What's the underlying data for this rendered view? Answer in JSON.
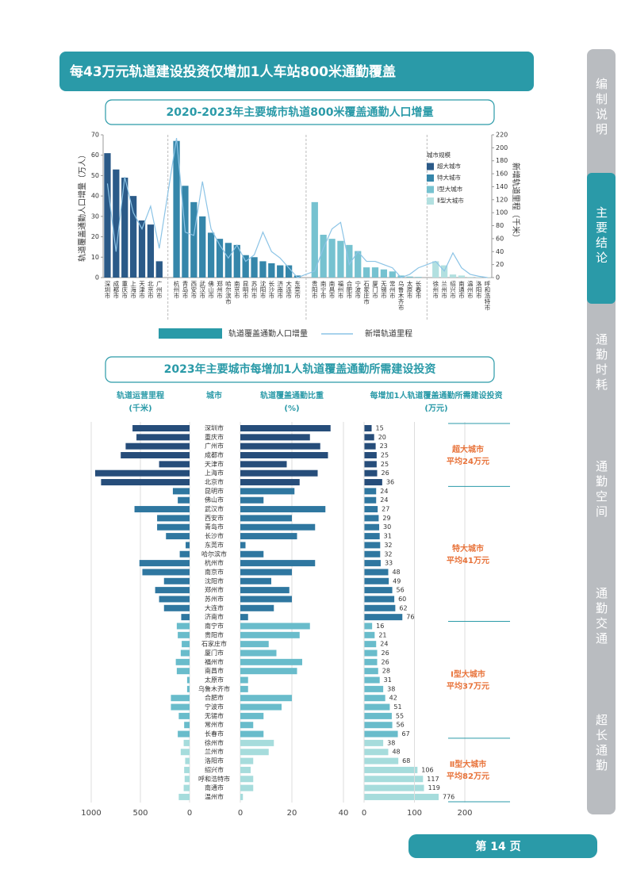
{
  "header": {
    "title": "每43万元轨道建设投资仅增加1人车站800米通勤覆盖"
  },
  "sidebar": {
    "tabs": [
      "编制说明",
      "主要结论",
      "通勤时耗",
      "通勤空间",
      "通勤交通",
      "超长通勤"
    ]
  },
  "footer": {
    "page": "第 14 页"
  },
  "chart_data": [
    {
      "type": "bar_line",
      "title": "2020-2023年主要城市轨道800米覆盖通勤人口增量",
      "y_label": "轨道覆盖通勤人口增量（万人）",
      "y2_label": "新增轨道里程（千米）",
      "ylim": [
        0,
        70
      ],
      "yticks": [
        0,
        10,
        20,
        30,
        40,
        50,
        60,
        70
      ],
      "y2lim": [
        0,
        220
      ],
      "y2ticks": [
        0,
        20,
        40,
        60,
        80,
        100,
        120,
        140,
        160,
        180,
        200,
        220
      ],
      "legend_title": "城市规模",
      "legend_position": "upper right",
      "series": [
        {
          "name": "轨道覆盖通勤人口增量",
          "color": "#2a9aa8"
        },
        {
          "name": "新增轨道里程",
          "color": "#8cc4e6",
          "axis": "y2"
        }
      ],
      "groups": [
        {
          "name": "超大城市",
          "color": "#2b5a88",
          "categories": [
            "深圳市",
            "成都市",
            "重庆市",
            "上海市",
            "天津市",
            "北京市",
            "广州市"
          ],
          "values": [
            61,
            53,
            49,
            40,
            28,
            26,
            8
          ],
          "line_values": [
            145,
            40,
            155,
            100,
            75,
            110,
            45
          ]
        },
        {
          "name": "特大城市",
          "color": "#3586aa",
          "categories": [
            "杭州市",
            "青岛市",
            "西安市",
            "武汉市",
            "佛山市",
            "郑州市",
            "哈尔滨市",
            "南京市",
            "昆明市",
            "苏州市",
            "沈阳市",
            "长沙市",
            "济南市",
            "大连市",
            "东莞市"
          ],
          "values": [
            67,
            45,
            37,
            30,
            22,
            19,
            17,
            16,
            11,
            10,
            8,
            7,
            6,
            6,
            1
          ],
          "line_values": [
            215,
            70,
            65,
            148,
            75,
            50,
            30,
            50,
            25,
            35,
            70,
            40,
            30,
            15,
            0
          ]
        },
        {
          "name": "Ⅰ型大城市",
          "color": "#76c2d0",
          "categories": [
            "贵阳市",
            "南宁市",
            "南昌市",
            "福州市",
            "合肥市",
            "宁波市",
            "石家庄市",
            "厦门市",
            "无锡市",
            "常州市",
            "乌鲁木齐市",
            "太原市",
            "长春市"
          ],
          "values": [
            37,
            21,
            19,
            18,
            16,
            13,
            5,
            5,
            4,
            3,
            1,
            0.5,
            0.3
          ],
          "line_values": [
            10,
            45,
            75,
            85,
            20,
            40,
            25,
            25,
            20,
            15,
            0,
            5,
            15
          ]
        },
        {
          "name": "Ⅱ型大城市",
          "color": "#b2e0e0",
          "categories": [
            "徐州市",
            "兰州市",
            "绍兴市",
            "南通市",
            "温州市",
            "洛阳市",
            "呼和浩特市"
          ],
          "values": [
            8,
            6,
            1.5,
            1,
            0.3,
            0.2,
            0.2
          ],
          "line_values": [
            25,
            10,
            38,
            15,
            5,
            2,
            0
          ]
        }
      ]
    },
    {
      "type": "hbar_panels",
      "title": "2023年主要城市每增加1人轨道覆盖通勤所需建设投资",
      "city_header": "城市",
      "mileage_axis": {
        "title": "轨道运营里程",
        "unit": "(千米)",
        "xlim": [
          0,
          1000
        ],
        "xticks": [
          0,
          500,
          1000
        ],
        "reversed": true
      },
      "ratio_axis": {
        "title": "轨道覆盖通勤比重",
        "unit": "(%)",
        "xlim": [
          0,
          40
        ],
        "xticks": [
          0,
          20,
          40
        ]
      },
      "investment_axis": {
        "title": "每增加1人轨道覆盖通勤所需建设投资",
        "unit": "(万元)",
        "xlim": [
          0,
          200
        ],
        "xticks": [
          0,
          100,
          200
        ]
      },
      "annotation_color": "#e8733a",
      "groups": [
        {
          "name": "超大城市",
          "average_label": "平均24万元",
          "color": "#264d7a",
          "categories": [
            "深圳市",
            "重庆市",
            "广州市",
            "成都市",
            "天津市",
            "上海市",
            "北京市"
          ],
          "mileage": [
            580,
            540,
            650,
            700,
            310,
            960,
            900
          ],
          "ratio": [
            35,
            27,
            31,
            34,
            18,
            30,
            23
          ],
          "investment": [
            15,
            20,
            23,
            25,
            25,
            26,
            36
          ]
        },
        {
          "name": "特大城市",
          "average_label": "平均41万元",
          "color": "#2f77a0",
          "categories": [
            "昆明市",
            "佛山市",
            "武汉市",
            "西安市",
            "青岛市",
            "长沙市",
            "东莞市",
            "哈尔滨市",
            "杭州市",
            "南京市",
            "沈阳市",
            "郑州市",
            "苏州市",
            "大连市",
            "济南市"
          ],
          "mileage": [
            170,
            120,
            560,
            330,
            330,
            240,
            40,
            100,
            510,
            480,
            260,
            350,
            310,
            260,
            85
          ],
          "ratio": [
            21,
            9,
            33,
            20,
            29,
            22,
            2,
            9,
            29,
            20,
            12,
            19,
            20,
            13,
            3
          ],
          "investment": [
            24,
            24,
            27,
            29,
            30,
            31,
            32,
            32,
            33,
            48,
            49,
            56,
            60,
            62,
            76
          ]
        },
        {
          "name": "Ⅰ型大城市",
          "average_label": "平均37万元",
          "color": "#69bccb",
          "categories": [
            "南宁市",
            "贵阳市",
            "石家庄市",
            "厦门市",
            "福州市",
            "南昌市",
            "太原市",
            "乌鲁木齐市",
            "合肥市",
            "宁波市",
            "无锡市",
            "常州市",
            "长春市"
          ],
          "mileage": [
            130,
            120,
            80,
            90,
            140,
            130,
            25,
            25,
            190,
            190,
            110,
            55,
            120
          ],
          "ratio": [
            27,
            23,
            11,
            14,
            24,
            22,
            3,
            3,
            20,
            16,
            9,
            5,
            9
          ],
          "investment": [
            16,
            21,
            24,
            26,
            26,
            28,
            31,
            38,
            42,
            51,
            55,
            56,
            67
          ]
        },
        {
          "name": "Ⅱ型大城市",
          "average_label": "平均82万元",
          "color": "#a6dcdc",
          "categories": [
            "徐州市",
            "兰州市",
            "洛阳市",
            "绍兴市",
            "呼和浩特市",
            "南通市",
            "温州市"
          ],
          "mileage": [
            60,
            90,
            45,
            55,
            50,
            60,
            110
          ],
          "ratio": [
            13,
            11,
            5,
            4,
            5,
            5,
            1
          ],
          "investment": [
            38,
            48,
            68,
            106,
            117,
            119,
            776
          ]
        }
      ]
    }
  ]
}
